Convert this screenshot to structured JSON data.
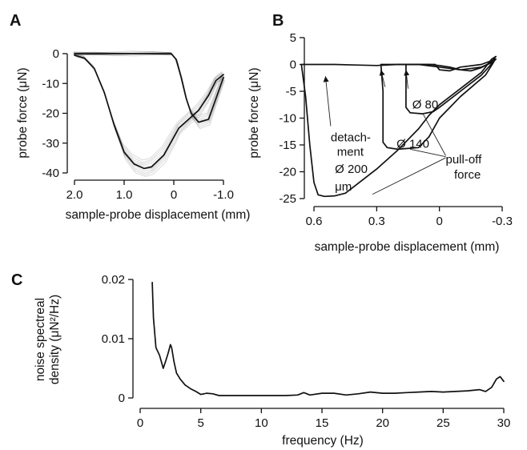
{
  "chart_data": [
    {
      "panel": "A",
      "type": "line",
      "xlabel": "sample-probe displacement (mm)",
      "ylabel": "probe force (μN)",
      "xlim": [
        2.0,
        -1.0
      ],
      "ylim": [
        -42,
        3
      ],
      "xticks": [
        2.0,
        1.0,
        0,
        -1.0
      ],
      "xtick_labels": [
        "2.0",
        "1.0",
        "0",
        "-1.0"
      ],
      "yticks": [
        0,
        -10,
        -20,
        -30,
        -40
      ],
      "ytick_labels": [
        "0",
        "-10",
        "-20",
        "-30",
        "-40"
      ],
      "grid": false,
      "series": [
        {
          "role": "approach",
          "x": [
            2.0,
            1.6,
            1.2,
            0.8,
            0.4,
            0.05,
            -0.05,
            -0.15,
            -0.25,
            -0.35,
            -0.5,
            -0.7,
            -0.85,
            -1.0
          ],
          "y": [
            0,
            0,
            0,
            0,
            0,
            0,
            -2,
            -8,
            -15,
            -20,
            -23,
            -22,
            -15,
            -8
          ]
        },
        {
          "role": "retraction",
          "x": [
            -1.0,
            -0.85,
            -0.7,
            -0.5,
            -0.3,
            -0.1,
            0.0,
            0.2,
            0.45,
            0.6,
            0.8,
            1.0,
            1.2,
            1.4,
            1.6,
            1.8,
            2.0
          ],
          "y": [
            -7,
            -9,
            -14,
            -19,
            -22,
            -25,
            -28,
            -34,
            -38,
            -38.5,
            -37,
            -33,
            -24,
            -13,
            -5,
            -1.5,
            -0.5
          ]
        }
      ]
    },
    {
      "panel": "B",
      "type": "line",
      "xlabel": "sample-probe displacement (mm)",
      "ylabel": "probe force (μN)",
      "xlim": [
        0.7,
        -0.32
      ],
      "ylim": [
        -26,
        5.5
      ],
      "xticks": [
        0.6,
        0.3,
        0,
        -0.3
      ],
      "xtick_labels": [
        "0.6",
        "0.3",
        "0",
        "-0.3"
      ],
      "yticks": [
        5,
        0,
        -5,
        -10,
        -15,
        -20,
        -25
      ],
      "ytick_labels": [
        "5",
        "0",
        "-5",
        "-10",
        "-15",
        "-20",
        "-25"
      ],
      "grid": false,
      "series": [
        {
          "name": "Ø 200 μm",
          "x": [
            0.66,
            0.6,
            0.55,
            0.53,
            0.52,
            0.5,
            0.4,
            0.3,
            0.2,
            0.1,
            0.05,
            0.0,
            -0.05,
            -0.1,
            -0.15,
            -0.2,
            -0.25,
            -0.27,
            -0.25,
            -0.2,
            -0.1,
            0.0,
            0.05,
            0.1,
            0.2,
            0.3,
            0.4,
            0.45,
            0.5,
            0.55,
            0.58,
            0.6,
            0.62,
            0.64,
            0.66
          ],
          "y": [
            0,
            0,
            0,
            0,
            0,
            0,
            -0.1,
            -0.2,
            0,
            0,
            0,
            -0.2,
            -0.5,
            -1.0,
            -1.2,
            -0.6,
            0.5,
            1.5,
            1.0,
            -1.5,
            -4.5,
            -7.5,
            -9.5,
            -12.0,
            -16.0,
            -19.5,
            -22.5,
            -24.0,
            -24.5,
            -24.6,
            -24.3,
            -22.0,
            -15.0,
            -6.0,
            0
          ]
        },
        {
          "name": "Ø 140",
          "x": [
            0.28,
            0.2,
            0.1,
            0.0,
            -0.1,
            -0.2,
            -0.26,
            -0.22,
            -0.1,
            0.0,
            0.05,
            0.1,
            0.2,
            0.25,
            0.27,
            0.27,
            0.28
          ],
          "y": [
            0,
            0,
            0,
            -0.5,
            -1.0,
            -0.5,
            0.5,
            -2.0,
            -6.0,
            -10.0,
            -13.5,
            -15.5,
            -15.8,
            -15.5,
            -14.5,
            -5.0,
            0
          ]
        },
        {
          "name": "Ø 80",
          "x": [
            0.16,
            0.1,
            0.02,
            0.0,
            -0.05,
            -0.1,
            -0.2,
            -0.27,
            -0.2,
            -0.1,
            0.0,
            0.03,
            0.08,
            0.14,
            0.16,
            0.16
          ],
          "y": [
            0,
            0,
            0,
            -1.0,
            -1.2,
            -0.5,
            0,
            1.0,
            -2.0,
            -5.0,
            -8.0,
            -8.8,
            -9.2,
            -9.0,
            -8.0,
            0
          ]
        }
      ],
      "annotations": [
        {
          "text": "Ø 80"
        },
        {
          "text": "Ø 140"
        },
        {
          "text": "Ø 200"
        },
        {
          "text": "μm"
        },
        {
          "text": "detach-"
        },
        {
          "text": "ment"
        },
        {
          "text": "pull-off"
        },
        {
          "text": "force"
        }
      ]
    },
    {
      "panel": "C",
      "type": "line",
      "xlabel": "frequency (Hz)",
      "ylabel": "noise spectreal density (μN²/Hz)",
      "ylabel_lines": [
        "noise spectreal",
        "density (μN²/Hz)"
      ],
      "xlim": [
        0,
        30
      ],
      "ylim": [
        0,
        0.02
      ],
      "xticks": [
        0,
        5,
        10,
        15,
        20,
        25,
        30
      ],
      "xtick_labels": [
        "0",
        "5",
        "10",
        "15",
        "20",
        "25",
        "30"
      ],
      "yticks": [
        0,
        0.01,
        0.02
      ],
      "ytick_labels": [
        "0",
        "0.01",
        "0.02"
      ],
      "grid": false,
      "series": [
        {
          "x": [
            1.0,
            1.1,
            1.3,
            1.6,
            1.9,
            2.1,
            2.3,
            2.5,
            2.6,
            2.8,
            3.0,
            3.3,
            3.7,
            4.2,
            4.6,
            5.0,
            5.5,
            6.0,
            6.5,
            7.0,
            8.0,
            9.0,
            10.0,
            11.0,
            12.0,
            13.0,
            13.5,
            14.0,
            15.0,
            16.0,
            17.0,
            18.0,
            19.0,
            20.0,
            21.0,
            22.0,
            23.0,
            24.0,
            25.0,
            26.0,
            27.0,
            28.0,
            28.5,
            29.0,
            29.4,
            29.7,
            30.0
          ],
          "y": [
            0.0195,
            0.0135,
            0.0085,
            0.0072,
            0.005,
            0.0062,
            0.0075,
            0.009,
            0.0085,
            0.006,
            0.0042,
            0.0032,
            0.0022,
            0.0015,
            0.0011,
            0.0006,
            0.0008,
            0.0007,
            0.0004,
            0.0004,
            0.0004,
            0.0004,
            0.0004,
            0.0004,
            0.0004,
            0.0005,
            0.0009,
            0.0005,
            0.0008,
            0.0008,
            0.0005,
            0.0007,
            0.001,
            0.0008,
            0.0008,
            0.0009,
            0.001,
            0.0011,
            0.001,
            0.0011,
            0.0012,
            0.0014,
            0.0011,
            0.0018,
            0.0032,
            0.0036,
            0.0028
          ]
        }
      ]
    }
  ],
  "panel_letters": {
    "a": "A",
    "b": "B",
    "c": "C"
  }
}
